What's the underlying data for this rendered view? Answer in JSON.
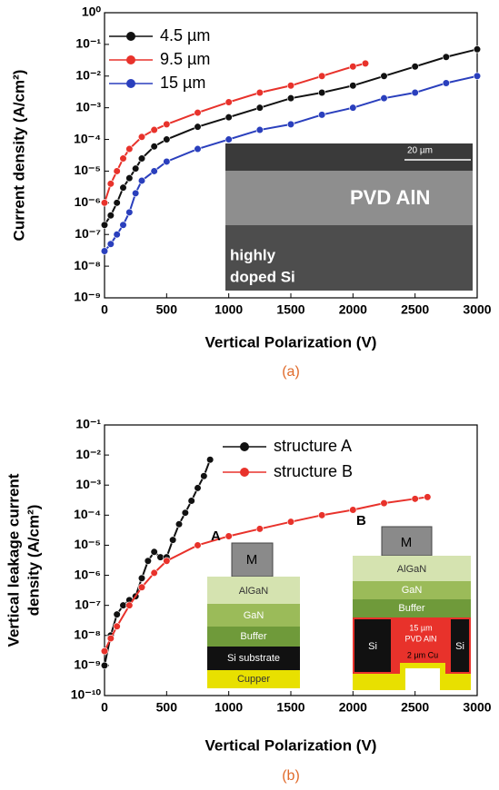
{
  "chart_data": [
    {
      "type": "scatter",
      "ylabel": "Current density (A/cm²)",
      "xlabel": "Vertical Polarization (V)",
      "caption": "(a)",
      "xlim": [
        0,
        3000
      ],
      "xticks": [
        0,
        500,
        1000,
        1500,
        2000,
        2500,
        3000
      ],
      "ylim": [
        1e-09,
        1
      ],
      "log_y": true,
      "yticks": [
        {
          "value": 1e-09,
          "label": "10⁻⁹"
        },
        {
          "value": 1e-08,
          "label": "10⁻⁸"
        },
        {
          "value": 1e-07,
          "label": "10⁻⁷"
        },
        {
          "value": 1e-06,
          "label": "10⁻⁶"
        },
        {
          "value": 1e-05,
          "label": "10⁻⁵"
        },
        {
          "value": 0.0001,
          "label": "10⁻⁴"
        },
        {
          "value": 0.001,
          "label": "10⁻³"
        },
        {
          "value": 0.01,
          "label": "10⁻²"
        },
        {
          "value": 0.1,
          "label": "10⁻¹"
        },
        {
          "value": 1,
          "label": "10⁰"
        }
      ],
      "legend": "upper left",
      "series": [
        {
          "name": "4.5 µm",
          "color": "#111111",
          "x": [
            0,
            50,
            100,
            150,
            200,
            250,
            300,
            400,
            500,
            750,
            1000,
            1250,
            1500,
            1750,
            2000,
            2250,
            2500,
            2750,
            3000
          ],
          "values": [
            2e-07,
            4e-07,
            1e-06,
            3e-06,
            6e-06,
            1.2e-05,
            2.5e-05,
            6e-05,
            0.0001,
            0.00025,
            0.0005,
            0.001,
            0.002,
            0.003,
            0.005,
            0.01,
            0.02,
            0.04,
            0.07
          ]
        },
        {
          "name": "9.5 µm",
          "color": "#e8322b",
          "x": [
            0,
            50,
            100,
            150,
            200,
            300,
            400,
            500,
            750,
            1000,
            1250,
            1500,
            1750,
            2000,
            2100
          ],
          "values": [
            1e-06,
            4e-06,
            1e-05,
            2.5e-05,
            5e-05,
            0.00012,
            0.0002,
            0.0003,
            0.0007,
            0.0015,
            0.003,
            0.005,
            0.01,
            0.02,
            0.025
          ]
        },
        {
          "name": "15 µm",
          "color": "#2a3fbd",
          "x": [
            0,
            50,
            100,
            150,
            200,
            250,
            300,
            400,
            500,
            750,
            1000,
            1250,
            1500,
            1750,
            2000,
            2250,
            2500,
            2750,
            3000
          ],
          "values": [
            3e-08,
            5e-08,
            1e-07,
            2e-07,
            5e-07,
            2e-06,
            5e-06,
            1e-05,
            2e-05,
            5e-05,
            0.0001,
            0.0002,
            0.0003,
            0.0006,
            0.001,
            0.002,
            0.003,
            0.006,
            0.01
          ]
        }
      ],
      "annotations": [
        "20 µm",
        "PVD AlN",
        "highly",
        "doped Si"
      ]
    },
    {
      "type": "scatter",
      "ylabel": [
        "Vertical leakage current",
        "density (A/cm²)"
      ],
      "xlabel": "Vertical Polarization (V)",
      "caption": "(b)",
      "xlim": [
        0,
        3000
      ],
      "xticks": [
        0,
        500,
        1000,
        1500,
        2000,
        2500,
        3000
      ],
      "ylim": [
        1e-10,
        0.1
      ],
      "log_y": true,
      "yticks": [
        {
          "value": 1e-10,
          "label": "10⁻¹⁰"
        },
        {
          "value": 1e-09,
          "label": "10⁻⁹"
        },
        {
          "value": 1e-08,
          "label": "10⁻⁸"
        },
        {
          "value": 1e-07,
          "label": "10⁻⁷"
        },
        {
          "value": 1e-06,
          "label": "10⁻⁶"
        },
        {
          "value": 1e-05,
          "label": "10⁻⁵"
        },
        {
          "value": 0.0001,
          "label": "10⁻⁴"
        },
        {
          "value": 0.001,
          "label": "10⁻³"
        },
        {
          "value": 0.01,
          "label": "10⁻²"
        },
        {
          "value": 0.1,
          "label": "10⁻¹"
        }
      ],
      "legend": "upper center",
      "series": [
        {
          "name": "structure A",
          "color": "#111111",
          "x": [
            0,
            50,
            100,
            150,
            200,
            250,
            300,
            350,
            400,
            450,
            500,
            550,
            600,
            650,
            700,
            750,
            800,
            850
          ],
          "values": [
            1e-09,
            1e-08,
            5e-08,
            1e-07,
            1.5e-07,
            2e-07,
            8e-07,
            3e-06,
            6e-06,
            4e-06,
            4e-06,
            1.5e-05,
            5e-05,
            0.00012,
            0.0003,
            0.0008,
            0.002,
            0.007
          ]
        },
        {
          "name": "structure B",
          "color": "#e8322b",
          "x": [
            0,
            50,
            100,
            200,
            300,
            400,
            500,
            750,
            1000,
            1250,
            1500,
            1750,
            2000,
            2250,
            2500,
            2600
          ],
          "values": [
            3e-09,
            8e-09,
            2e-08,
            1e-07,
            4e-07,
            1.2e-06,
            3e-06,
            1e-05,
            2e-05,
            3.5e-05,
            6e-05,
            0.0001,
            0.00015,
            0.00025,
            0.00035,
            0.0004
          ]
        }
      ],
      "annotations": [
        "A",
        "M",
        "AlGaN",
        "GaN",
        "Buffer",
        "Si substrate",
        "Cupper",
        "B",
        "M",
        "AlGaN",
        "GaN",
        "Buffer",
        "15 µm",
        "PVD AlN",
        "Si",
        "Si",
        "2 µm Cu"
      ]
    }
  ]
}
